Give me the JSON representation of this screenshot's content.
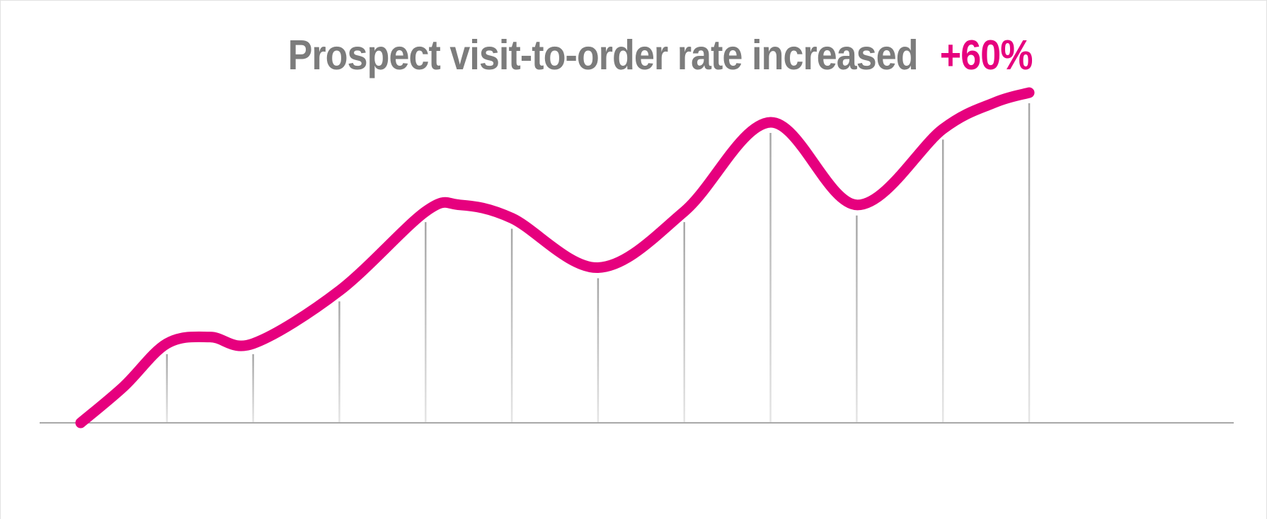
{
  "title": {
    "text": "Prospect visit-to-order rate increased",
    "highlight": "+60%"
  },
  "colors": {
    "line": "#E6007E",
    "title_gray": "#7C7C7C",
    "gridline_top": "#A6A6A6",
    "gridline_bottom": "#E6E6E6",
    "baseline": "#A8A8A8"
  },
  "chart_data": {
    "type": "line",
    "title": "Prospect visit-to-order rate increased",
    "annotation": "+60%",
    "xlabel": "",
    "ylabel": "",
    "x_unit": "time-step",
    "ylim": [
      0,
      100
    ],
    "grid": "vertical drop-lines under each step, no horizontal grid, no axis labels",
    "legend": false,
    "points": [
      {
        "x": 0,
        "y": 0
      },
      {
        "x": 0.5,
        "y": 11
      },
      {
        "x": 1,
        "y": 24
      },
      {
        "x": 1.5,
        "y": 26
      },
      {
        "x": 2,
        "y": 24
      },
      {
        "x": 3,
        "y": 40
      },
      {
        "x": 4,
        "y": 64
      },
      {
        "x": 4.4,
        "y": 66
      },
      {
        "x": 5,
        "y": 62
      },
      {
        "x": 6,
        "y": 47
      },
      {
        "x": 7,
        "y": 64
      },
      {
        "x": 8,
        "y": 91
      },
      {
        "x": 9,
        "y": 66
      },
      {
        "x": 10,
        "y": 89
      },
      {
        "x": 10.6,
        "y": 97
      },
      {
        "x": 11,
        "y": 100
      }
    ],
    "gridline_x": [
      1,
      2,
      3,
      4,
      5,
      6,
      7,
      8,
      9,
      10,
      11
    ]
  }
}
